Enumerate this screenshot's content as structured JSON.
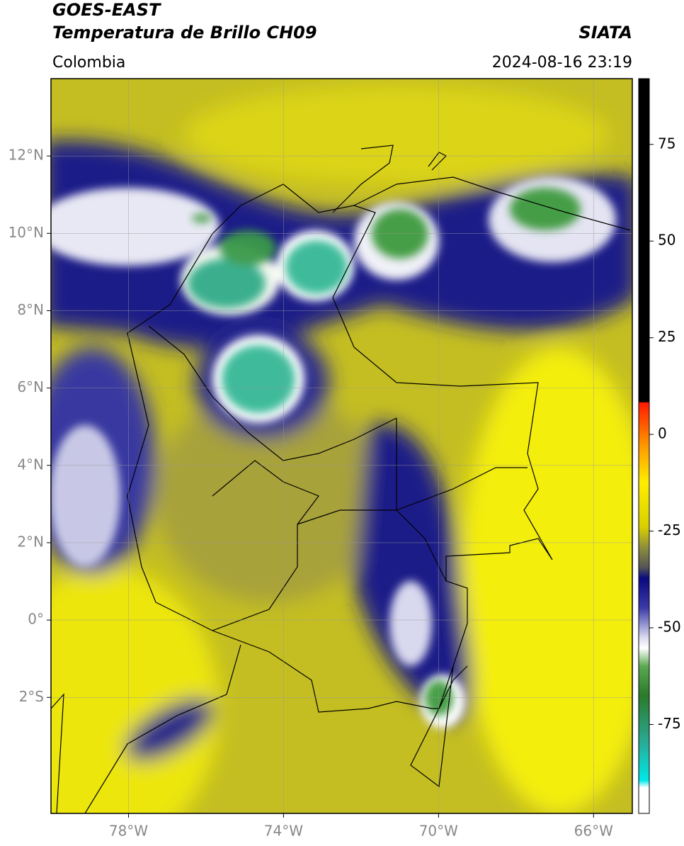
{
  "header": {
    "title": "GOES-EAST",
    "subtitle": "Temperatura de Brillo CH09",
    "region": "Colombia",
    "source": "SIATA",
    "datetime": "2024-08-16 23:19"
  },
  "map": {
    "xlim": [
      -80,
      -65
    ],
    "ylim": [
      -5,
      14
    ],
    "xticks": [
      {
        "value": -78,
        "label": "78°W"
      },
      {
        "value": -74,
        "label": "74°W"
      },
      {
        "value": -70,
        "label": "70°W"
      },
      {
        "value": -66,
        "label": "66°W"
      }
    ],
    "yticks": [
      {
        "value": 12,
        "label": "12°N"
      },
      {
        "value": 10,
        "label": "10°N"
      },
      {
        "value": 8,
        "label": "8°N"
      },
      {
        "value": 6,
        "label": "6°N"
      },
      {
        "value": 4,
        "label": "4°N"
      },
      {
        "value": 2,
        "label": "2°N"
      },
      {
        "value": 0,
        "label": "0°"
      },
      {
        "value": -2,
        "label": "2°S"
      }
    ],
    "grid": true
  },
  "colorbar": {
    "lim": [
      -98,
      92
    ],
    "ticks": [
      75,
      50,
      25,
      0,
      -25,
      -50,
      -75
    ]
  }
}
